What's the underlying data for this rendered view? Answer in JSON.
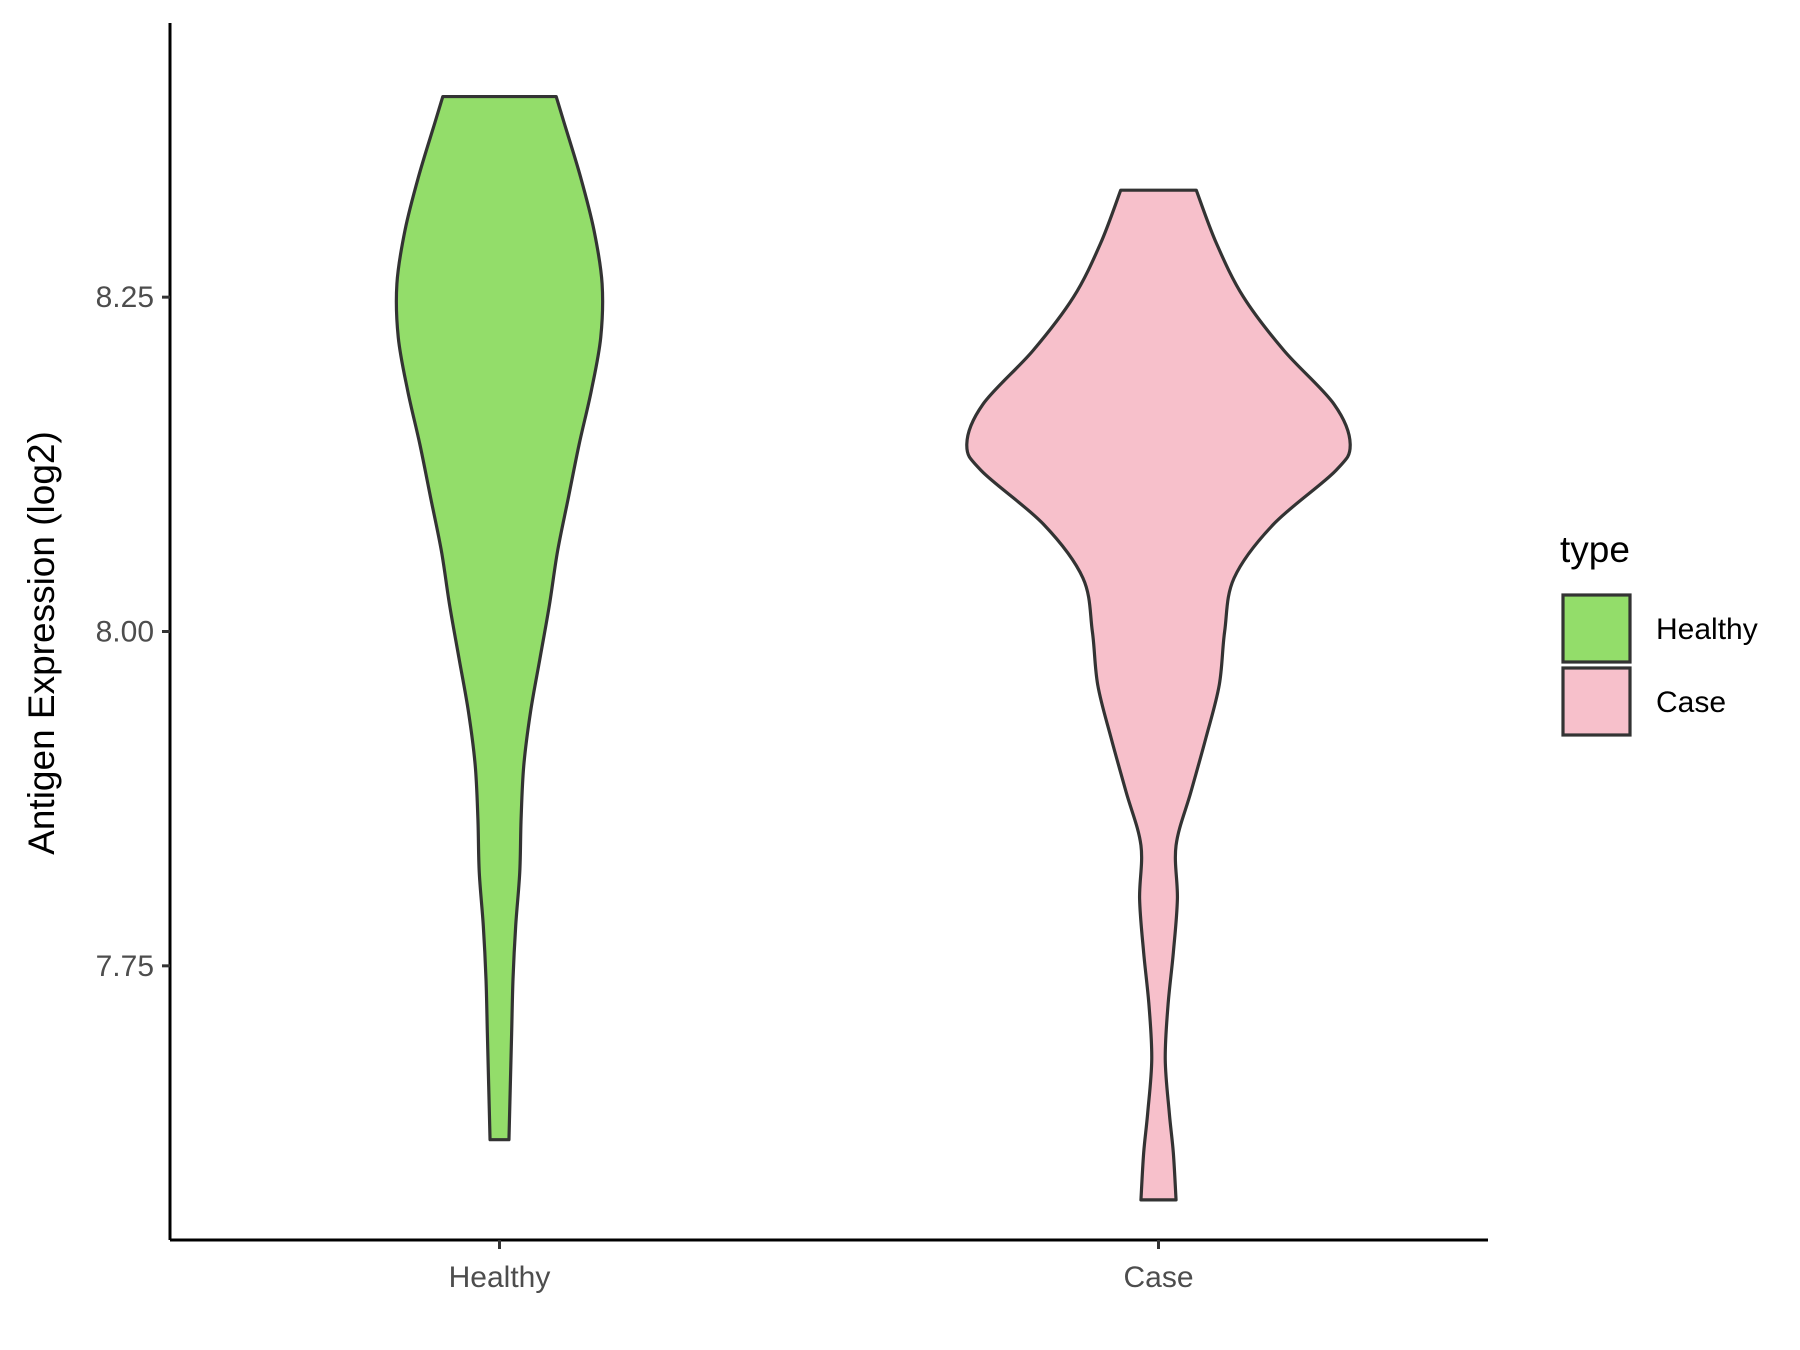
{
  "chart_data": {
    "type": "violin",
    "ylabel": "Antigen Expression (log2)",
    "ylim": [
      7.545,
      8.455
    ],
    "yticks": [
      7.75,
      8.0,
      8.25
    ],
    "ytick_labels": [
      "7.75",
      "8.00",
      "8.25"
    ],
    "categories": [
      "Healthy",
      "Case"
    ],
    "grid": false,
    "legend": {
      "title": "type",
      "position": "right",
      "entries": [
        {
          "label": "Healthy",
          "color": "#93dd6a"
        },
        {
          "label": "Case",
          "color": "#f7c0cb"
        }
      ]
    },
    "series": [
      {
        "category": "Healthy",
        "color": "#93dd6a",
        "outline": "#333333",
        "min": 7.62,
        "max": 8.4,
        "profile": [
          [
            7.62,
            0.07
          ],
          [
            7.66,
            0.08
          ],
          [
            7.7,
            0.09
          ],
          [
            7.74,
            0.1
          ],
          [
            7.78,
            0.12
          ],
          [
            7.82,
            0.15
          ],
          [
            7.86,
            0.16
          ],
          [
            7.9,
            0.18
          ],
          [
            7.94,
            0.23
          ],
          [
            7.98,
            0.3
          ],
          [
            8.02,
            0.37
          ],
          [
            8.06,
            0.43
          ],
          [
            8.1,
            0.51
          ],
          [
            8.14,
            0.59
          ],
          [
            8.18,
            0.68
          ],
          [
            8.22,
            0.75
          ],
          [
            8.26,
            0.76
          ],
          [
            8.3,
            0.7
          ],
          [
            8.34,
            0.6
          ],
          [
            8.38,
            0.48
          ],
          [
            8.4,
            0.42
          ]
        ]
      },
      {
        "category": "Case",
        "color": "#f7c0cb",
        "outline": "#333333",
        "min": 7.575,
        "max": 8.33,
        "profile": [
          [
            7.575,
            0.13
          ],
          [
            7.61,
            0.11
          ],
          [
            7.64,
            0.08
          ],
          [
            7.68,
            0.05
          ],
          [
            7.72,
            0.07
          ],
          [
            7.76,
            0.11
          ],
          [
            7.8,
            0.14
          ],
          [
            7.84,
            0.13
          ],
          [
            7.88,
            0.24
          ],
          [
            7.92,
            0.35
          ],
          [
            7.96,
            0.45
          ],
          [
            8.0,
            0.49
          ],
          [
            8.04,
            0.56
          ],
          [
            8.08,
            0.85
          ],
          [
            8.12,
            1.31
          ],
          [
            8.14,
            1.42
          ],
          [
            8.17,
            1.3
          ],
          [
            8.21,
            0.93
          ],
          [
            8.25,
            0.63
          ],
          [
            8.29,
            0.43
          ],
          [
            8.33,
            0.28
          ]
        ]
      }
    ]
  }
}
